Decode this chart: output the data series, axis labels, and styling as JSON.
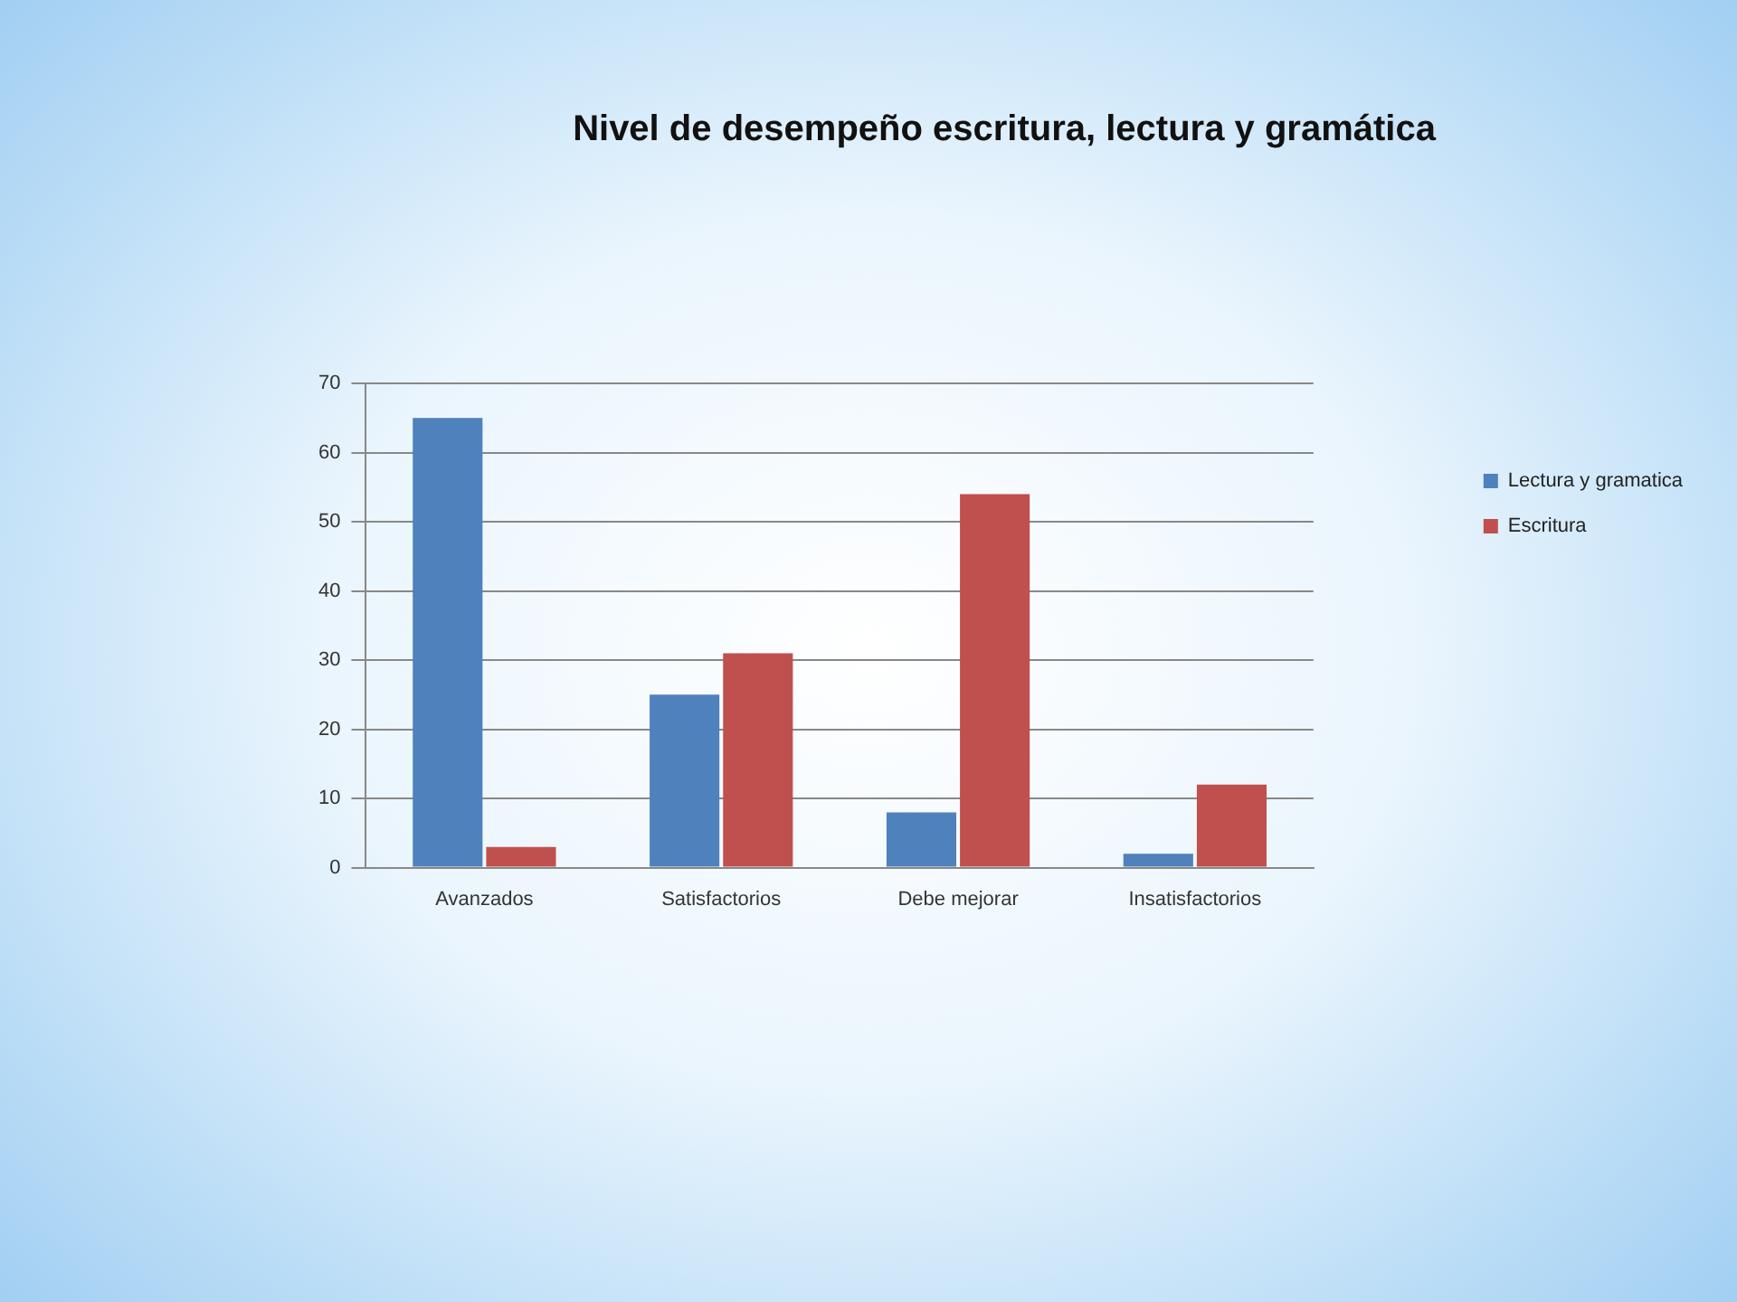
{
  "chart_data": {
    "type": "bar",
    "title": "Nivel de desempeño escritura, lectura y gramática",
    "categories": [
      "Avanzados",
      "Satisfactorios",
      "Debe mejorar",
      "Insatisfactorios"
    ],
    "series": [
      {
        "name": "Lectura y gramatica",
        "color": "#4f81bd",
        "values": [
          65,
          25,
          8,
          2
        ]
      },
      {
        "name": "Escritura",
        "color": "#c0504d",
        "values": [
          3,
          31,
          54,
          12
        ]
      }
    ],
    "ylim": [
      0,
      70
    ],
    "yticks": [
      0,
      10,
      20,
      30,
      40,
      50,
      60,
      70
    ],
    "grid": "y",
    "legend": "right"
  }
}
